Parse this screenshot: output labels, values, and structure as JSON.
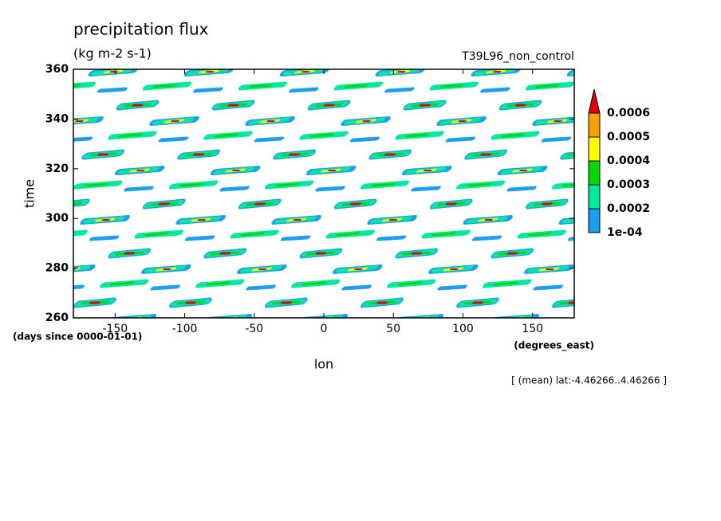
{
  "chart_data": {
    "type": "contour",
    "title": "precipitation flux",
    "subtitle": "(kg m-2 s-1)",
    "run_label": "T39L96_non_control",
    "x_label": "lon",
    "y_label": "time",
    "x_unit": "(degrees_east)",
    "y_unit": "(days since 0000-01-01)",
    "note": "[ (mean) lat:-4.46266..4.46266 ]",
    "xlim": [
      -180,
      180
    ],
    "xticks": [
      -150,
      -100,
      -50,
      0,
      50,
      100,
      150
    ],
    "ylim": [
      260,
      360
    ],
    "yticks": [
      260,
      280,
      300,
      320,
      340,
      360
    ],
    "levels": [
      {
        "value": 0.0001,
        "label": "1e-04"
      },
      0.0002,
      0.0003,
      0.0004,
      0.0005,
      0.0006
    ],
    "level_colors": [
      "#1e9ef0",
      "#00e8a0",
      "#00d800",
      "#ffff00",
      "#ffa000",
      "#e00000"
    ]
  }
}
